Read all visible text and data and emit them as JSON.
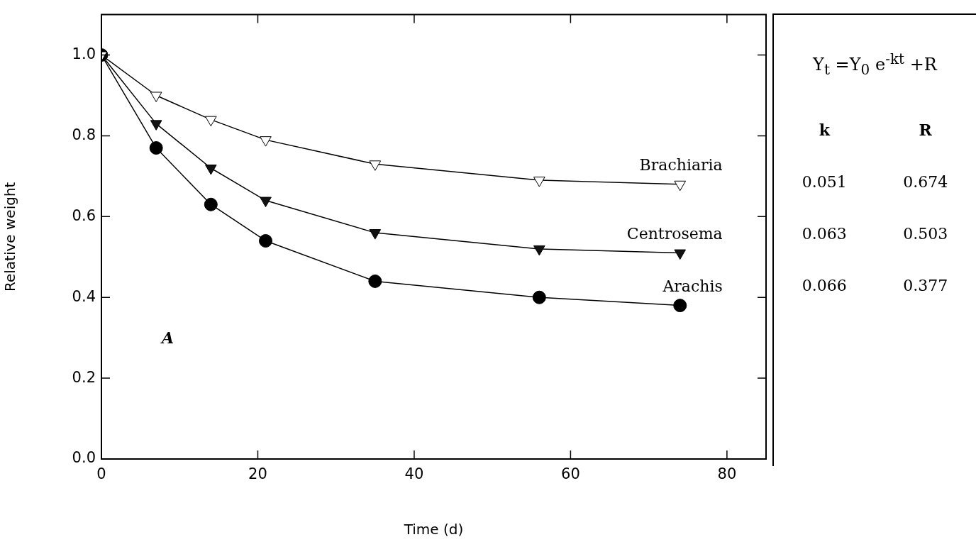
{
  "chart_data": {
    "type": "line",
    "xlabel": "Time (d)",
    "ylabel": "Relative weight",
    "xlim": [
      0,
      85
    ],
    "xticks": [
      0,
      20,
      40,
      60,
      80
    ],
    "ylim": [
      0,
      1.1
    ],
    "yticks": [
      {
        "value": 0,
        "label": "0.0"
      },
      0.2,
      0.4,
      0.6,
      0.8,
      {
        "value": 1,
        "label": "1.0"
      }
    ],
    "grid": false,
    "legend": "right",
    "line_style": "solid",
    "series": [
      {
        "name": "Brachiaria",
        "color": "#ffffff",
        "marker": "triangle",
        "x": [
          0,
          7,
          14,
          21,
          35,
          56,
          74
        ],
        "values": [
          1.0,
          0.9,
          0.84,
          0.79,
          0.73,
          0.69,
          0.68
        ]
      },
      {
        "name": "Centrosema",
        "color": "#111111",
        "marker": "triangle",
        "x": [
          0,
          7,
          14,
          21,
          35,
          56,
          74
        ],
        "values": [
          1.0,
          0.83,
          0.72,
          0.64,
          0.56,
          0.52,
          0.51
        ]
      },
      {
        "name": "Arachis",
        "color": "#000000",
        "marker": "circle",
        "x": [
          0,
          7,
          14,
          21,
          35,
          56,
          74
        ],
        "values": [
          1.0,
          0.77,
          0.63,
          0.54,
          0.44,
          0.4,
          0.38
        ]
      }
    ],
    "annotations": [
      "Y$_{t}$ =Y$_{0}$ e$^{-kt}$ +R",
      "k",
      "R",
      "0.051",
      "0.674",
      "0.063",
      "0.503",
      "0.066",
      "0.377",
      "A"
    ]
  }
}
